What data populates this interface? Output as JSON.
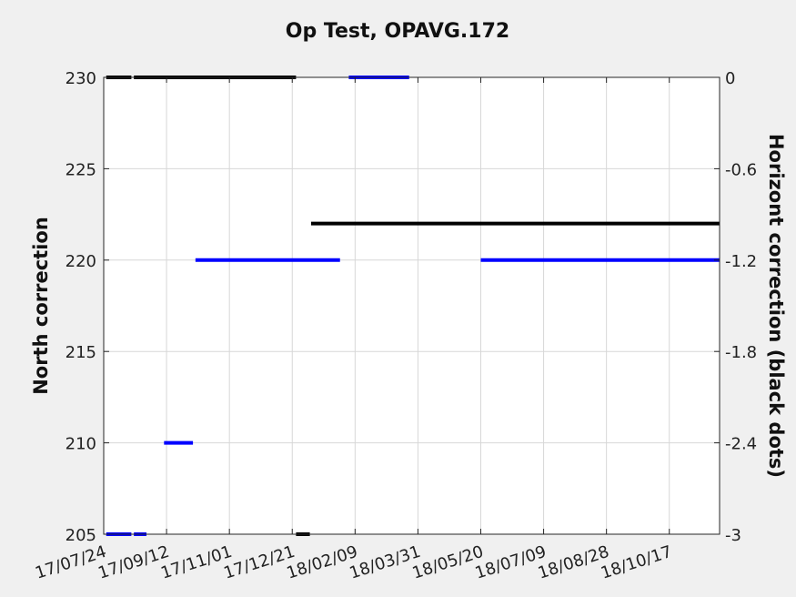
{
  "chart_data": {
    "type": "line",
    "title": "Op Test, OPAVG.172",
    "ylabel_left": "North correction",
    "ylabel_right": "Horizont correction (black dots)",
    "x_ticks": [
      "17/07/24",
      "17/09/12",
      "17/11/01",
      "17/12/21",
      "18/02/09",
      "18/03/31",
      "18/05/20",
      "18/07/09",
      "18/08/28",
      "18/10/17"
    ],
    "xlim": [
      "2017-07-24",
      "2018-11-26"
    ],
    "ylim_left": [
      205,
      230
    ],
    "y_ticks_left": [
      "205",
      "210",
      "215",
      "220",
      "225",
      "230"
    ],
    "ylim_right": [
      -3,
      0
    ],
    "y_ticks_right": [
      "-3",
      "-2.4",
      "-1.8",
      "-1.2",
      "-0.6",
      "0"
    ],
    "grid": true,
    "series": [
      {
        "color": "#0000ff",
        "axis": "left",
        "segments": [
          {
            "x0": "2017-07-26",
            "x1": "2017-08-15",
            "y": 205
          },
          {
            "x0": "2017-08-17",
            "x1": "2017-08-27",
            "y": 205
          },
          {
            "x0": "2017-09-10",
            "x1": "2017-10-03",
            "y": 210
          },
          {
            "x0": "2017-10-05",
            "x1": "2018-01-28",
            "y": 220
          },
          {
            "x0": "2018-02-04",
            "x1": "2018-03-24",
            "y": 230
          },
          {
            "x0": "2018-05-20",
            "x1": "2018-11-26",
            "y": 220
          }
        ]
      },
      {
        "color": "#000000",
        "axis": "right",
        "segments": [
          {
            "x0": "2017-07-26",
            "x1": "2017-08-15",
            "y": 0
          },
          {
            "x0": "2017-08-17",
            "x1": "2017-12-24",
            "y": 0
          },
          {
            "x0": "2017-12-24",
            "x1": "2018-01-04",
            "y": -3
          },
          {
            "x0": "2018-01-05",
            "x1": "2018-11-26",
            "y": -0.96
          }
        ]
      }
    ]
  }
}
